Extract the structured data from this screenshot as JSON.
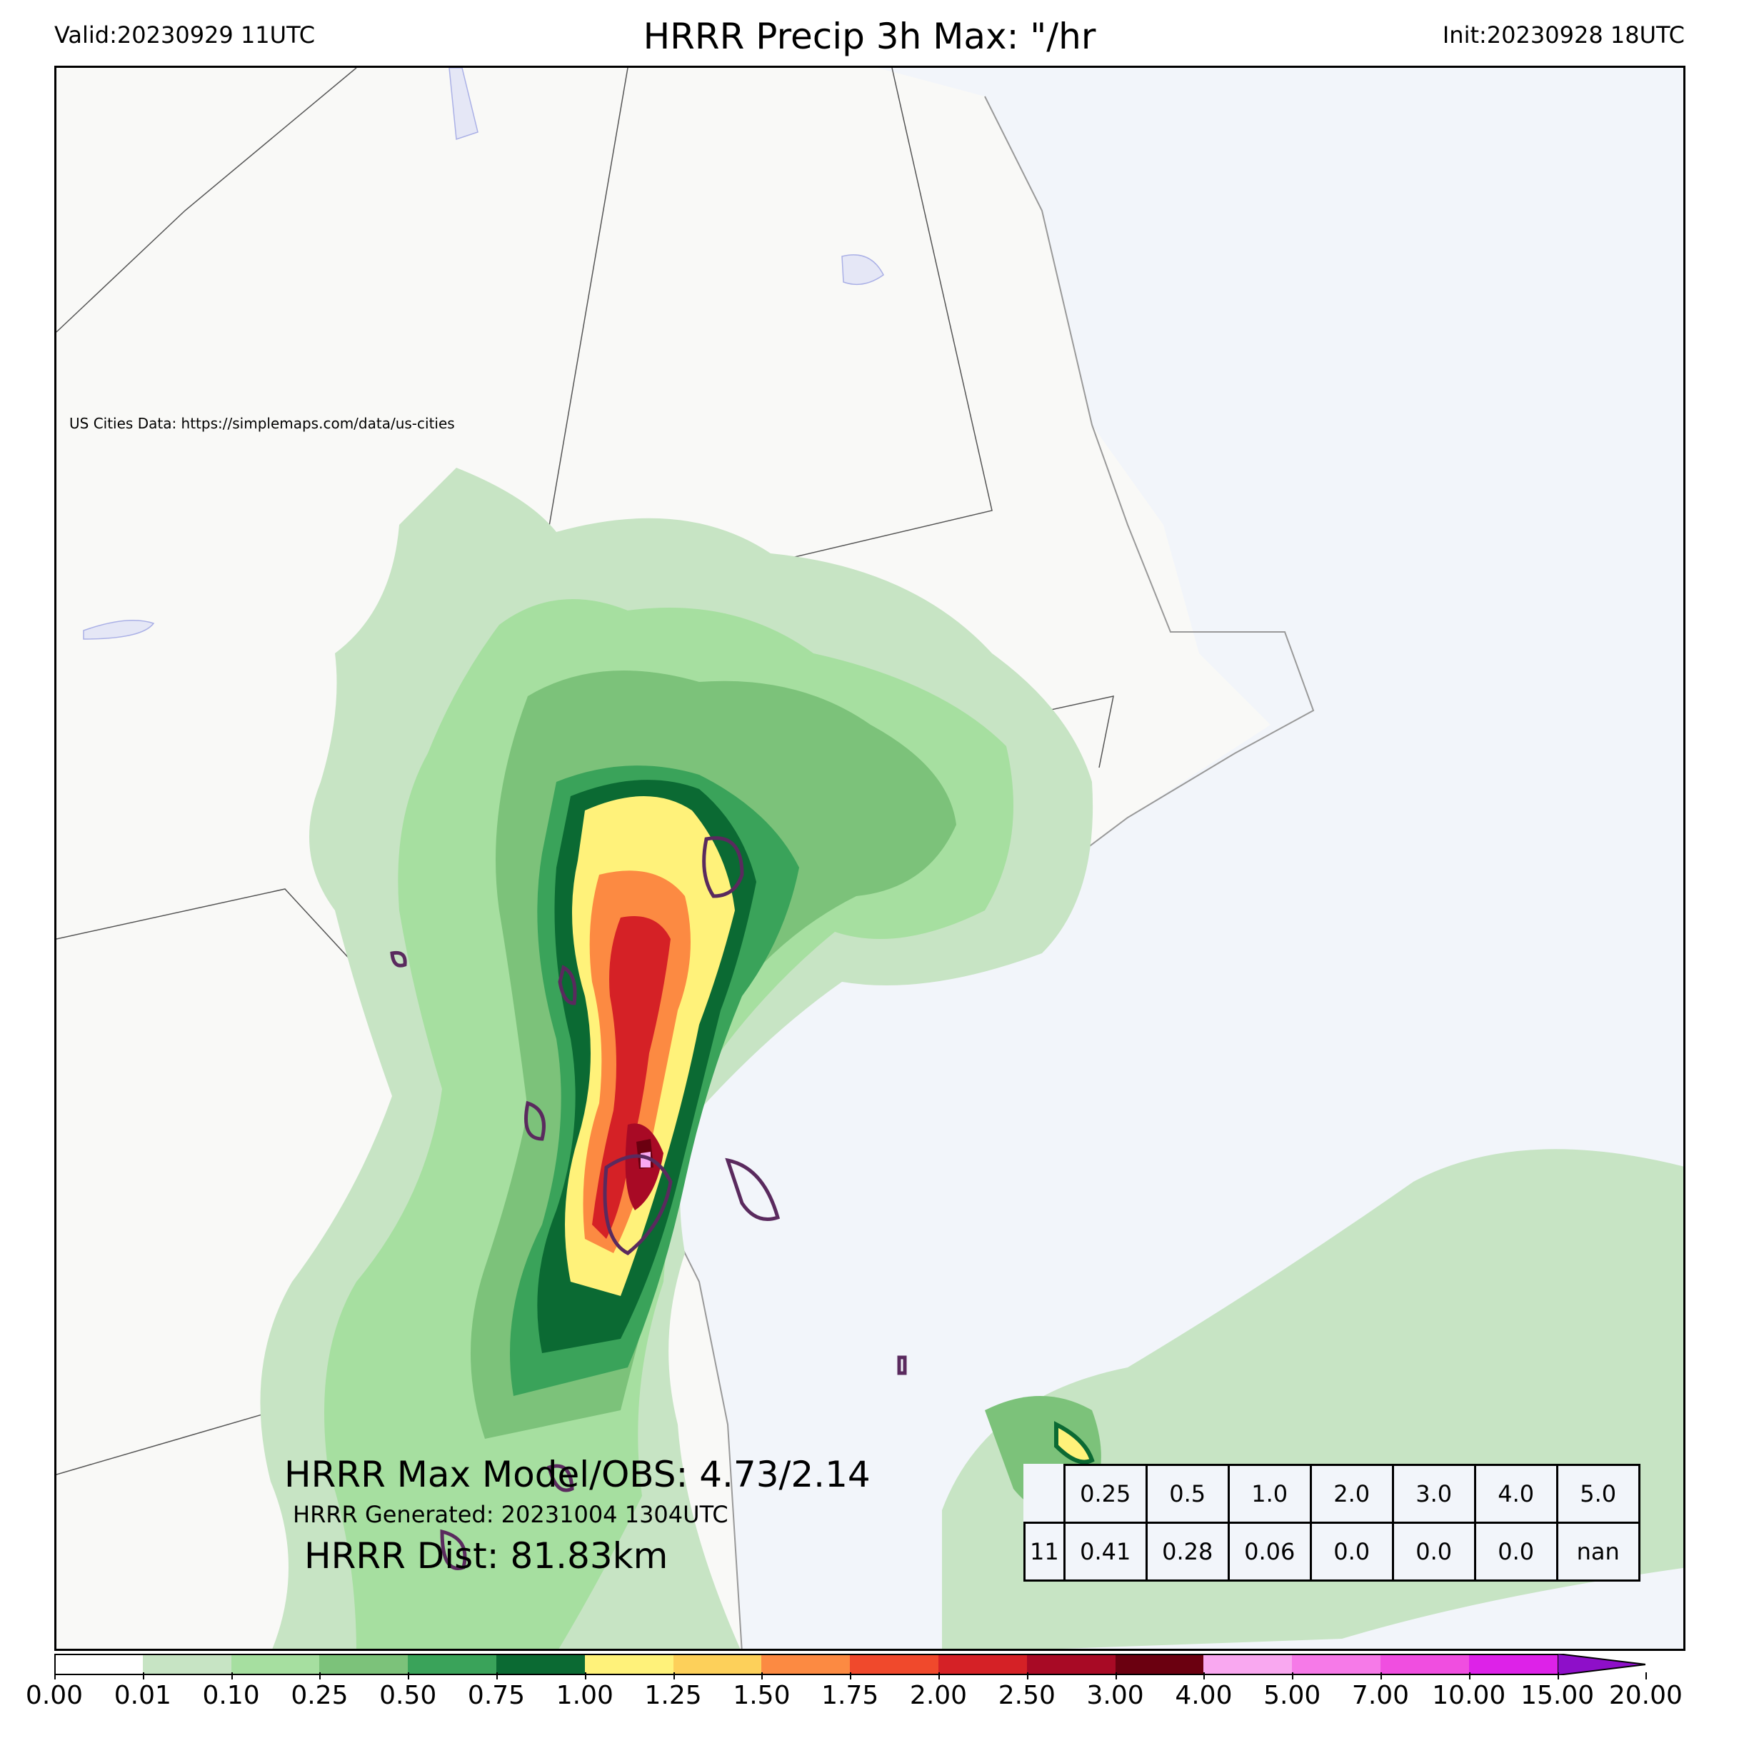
{
  "header": {
    "valid": "Valid:20230929 11UTC",
    "title": "HRRR Precip 3h Max: \"/hr",
    "init": "Init:20230928 18UTC"
  },
  "map": {
    "credit": "US Cities Data: https://simplemaps.com/data/us-cities",
    "colors": {
      "land": "#f9f9f7",
      "ocean": "#f2f5fa",
      "borders": "#555555",
      "obs_contour": "#5a2a5e"
    }
  },
  "overlay": {
    "max_line": "HRRR Max Model/OBS: 4.73/2.14",
    "generated": "HRRR Generated: 20231004 1304UTC",
    "dist": "HRRR Dist: 81.83km"
  },
  "stats_table": {
    "thresholds": [
      "0.25",
      "0.5",
      "1.0",
      "2.0",
      "3.0",
      "4.0",
      "5.0"
    ],
    "row_label": "11",
    "values": [
      "0.41",
      "0.28",
      "0.06",
      "0.0",
      "0.0",
      "0.0",
      "nan"
    ]
  },
  "colorbar": {
    "ticks": [
      "0.00",
      "0.01",
      "0.10",
      "0.25",
      "0.50",
      "0.75",
      "1.00",
      "1.25",
      "1.50",
      "1.75",
      "2.00",
      "2.50",
      "3.00",
      "4.00",
      "5.00",
      "7.00",
      "10.00",
      "15.00",
      "20.00"
    ],
    "colors": [
      "#ffffff",
      "#c7e4c4",
      "#a6dfa0",
      "#7cc27a",
      "#3aa35a",
      "#0b6a33",
      "#fff27a",
      "#fdd05a",
      "#fc8a42",
      "#f0492c",
      "#d52126",
      "#a80a25",
      "#6b0010",
      "#f9a8f0",
      "#f67ae8",
      "#f04ee0",
      "#dd22e8",
      "#8e0fc9"
    ]
  }
}
